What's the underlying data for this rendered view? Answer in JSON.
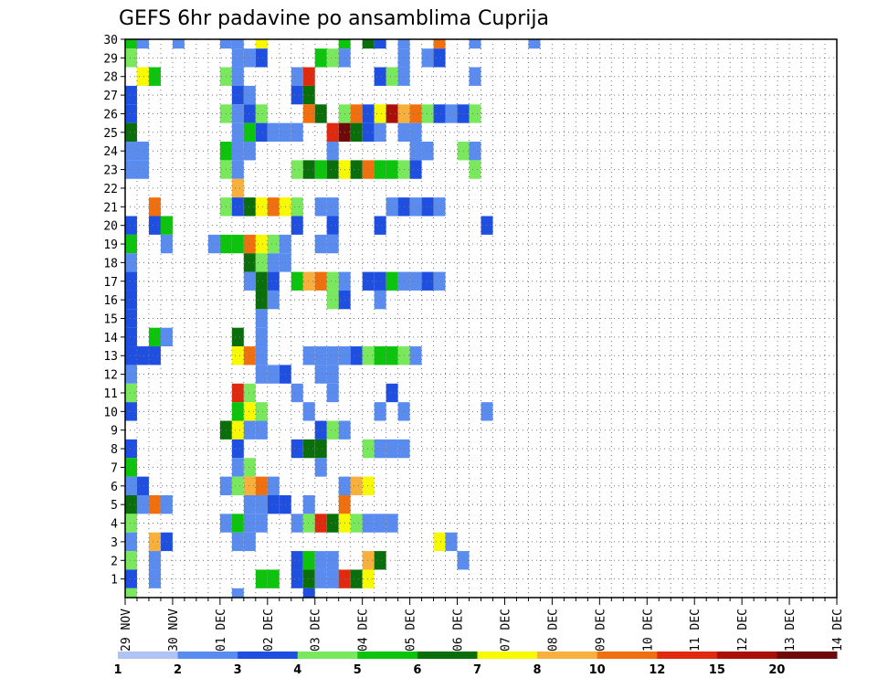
{
  "chart_data": {
    "type": "heatmap",
    "title": "GEFS 6hr padavine po ansamblima Cuprija",
    "xlabel": "",
    "ylabel": "",
    "x_tick_labels": [
      "29 NOV",
      "30 NOV",
      "01 DEC",
      "02 DEC",
      "03 DEC",
      "04 DEC",
      "05 DEC",
      "06 DEC",
      "07 DEC",
      "08 DEC",
      "09 DEC",
      "10 DEC",
      "11 DEC",
      "12 DEC",
      "13 DEC",
      "14 DEC"
    ],
    "y_tick_labels": [
      "1",
      "2",
      "3",
      "4",
      "5",
      "6",
      "7",
      "8",
      "9",
      "10",
      "11",
      "12",
      "13",
      "14",
      "15",
      "16",
      "17",
      "18",
      "19",
      "20",
      "21",
      "22",
      "23",
      "24",
      "25",
      "26",
      "27",
      "28",
      "29",
      "30"
    ],
    "xlim": [
      0,
      60
    ],
    "ylim": [
      0,
      30
    ],
    "grid": true,
    "colorbar": {
      "placement": "bottom",
      "levels": [
        "1",
        "2",
        "3",
        "4",
        "5",
        "6",
        "7",
        "8",
        "10",
        "12",
        "15",
        "20"
      ],
      "colors": [
        "#aec4f2",
        "#5a8cf0",
        "#1e4fe0",
        "#7ae85c",
        "#0cc40c",
        "#0a6e0a",
        "#f8f800",
        "#f8b03c",
        "#f07010",
        "#e02a10",
        "#a81008",
        "#6e0a0a"
      ]
    },
    "cells": [
      [
        0,
        30,
        4
      ],
      [
        1,
        30,
        1
      ],
      [
        4,
        30,
        1
      ],
      [
        8,
        30,
        1
      ],
      [
        9,
        30,
        1
      ],
      [
        11,
        30,
        6
      ],
      [
        18,
        30,
        4
      ],
      [
        20,
        30,
        5
      ],
      [
        21,
        30,
        2
      ],
      [
        23,
        30,
        1
      ],
      [
        26,
        30,
        8
      ],
      [
        29,
        30,
        1
      ],
      [
        34,
        30,
        1
      ],
      [
        0,
        29,
        3
      ],
      [
        9,
        29,
        1
      ],
      [
        10,
        29,
        1
      ],
      [
        11,
        29,
        2
      ],
      [
        16,
        29,
        4
      ],
      [
        17,
        29,
        3
      ],
      [
        18,
        29,
        1
      ],
      [
        23,
        29,
        1
      ],
      [
        25,
        29,
        1
      ],
      [
        26,
        29,
        2
      ],
      [
        1,
        28,
        6
      ],
      [
        2,
        28,
        4
      ],
      [
        8,
        28,
        3
      ],
      [
        9,
        28,
        1
      ],
      [
        14,
        28,
        1
      ],
      [
        15,
        28,
        9
      ],
      [
        21,
        28,
        2
      ],
      [
        22,
        28,
        3
      ],
      [
        23,
        28,
        1
      ],
      [
        29,
        28,
        1
      ],
      [
        0,
        27,
        2
      ],
      [
        9,
        27,
        2
      ],
      [
        10,
        27,
        1
      ],
      [
        14,
        27,
        2
      ],
      [
        15,
        27,
        5
      ],
      [
        0,
        26,
        2
      ],
      [
        8,
        26,
        3
      ],
      [
        9,
        26,
        1
      ],
      [
        10,
        26,
        2
      ],
      [
        11,
        26,
        3
      ],
      [
        15,
        26,
        8
      ],
      [
        16,
        26,
        5
      ],
      [
        18,
        26,
        3
      ],
      [
        19,
        26,
        8
      ],
      [
        20,
        26,
        2
      ],
      [
        21,
        26,
        6
      ],
      [
        22,
        26,
        10
      ],
      [
        23,
        26,
        7
      ],
      [
        24,
        26,
        8
      ],
      [
        25,
        26,
        3
      ],
      [
        26,
        26,
        2
      ],
      [
        27,
        26,
        1
      ],
      [
        28,
        26,
        2
      ],
      [
        29,
        26,
        3
      ],
      [
        0,
        25,
        5
      ],
      [
        9,
        25,
        1
      ],
      [
        10,
        25,
        4
      ],
      [
        11,
        25,
        2
      ],
      [
        12,
        25,
        1
      ],
      [
        13,
        25,
        1
      ],
      [
        14,
        25,
        1
      ],
      [
        17,
        25,
        9
      ],
      [
        18,
        25,
        11
      ],
      [
        19,
        25,
        5
      ],
      [
        20,
        25,
        2
      ],
      [
        21,
        25,
        1
      ],
      [
        23,
        25,
        1
      ],
      [
        24,
        25,
        1
      ],
      [
        0,
        24,
        1
      ],
      [
        1,
        24,
        1
      ],
      [
        8,
        24,
        4
      ],
      [
        9,
        24,
        1
      ],
      [
        10,
        24,
        1
      ],
      [
        17,
        24,
        1
      ],
      [
        24,
        24,
        1
      ],
      [
        25,
        24,
        1
      ],
      [
        28,
        24,
        3
      ],
      [
        29,
        24,
        1
      ],
      [
        0,
        23,
        1
      ],
      [
        1,
        23,
        1
      ],
      [
        8,
        23,
        3
      ],
      [
        9,
        23,
        1
      ],
      [
        14,
        23,
        3
      ],
      [
        15,
        23,
        5
      ],
      [
        16,
        23,
        4
      ],
      [
        17,
        23,
        5
      ],
      [
        18,
        23,
        6
      ],
      [
        19,
        23,
        5
      ],
      [
        20,
        23,
        8
      ],
      [
        21,
        23,
        4
      ],
      [
        22,
        23,
        4
      ],
      [
        23,
        23,
        3
      ],
      [
        24,
        23,
        2
      ],
      [
        29,
        23,
        3
      ],
      [
        9,
        22,
        7
      ],
      [
        2,
        21,
        8
      ],
      [
        8,
        21,
        3
      ],
      [
        9,
        21,
        2
      ],
      [
        10,
        21,
        5
      ],
      [
        11,
        21,
        6
      ],
      [
        12,
        21,
        8
      ],
      [
        13,
        21,
        6
      ],
      [
        14,
        21,
        3
      ],
      [
        16,
        21,
        1
      ],
      [
        17,
        21,
        1
      ],
      [
        22,
        21,
        1
      ],
      [
        23,
        21,
        2
      ],
      [
        24,
        21,
        1
      ],
      [
        25,
        21,
        2
      ],
      [
        26,
        21,
        1
      ],
      [
        0,
        20,
        2
      ],
      [
        2,
        20,
        2
      ],
      [
        3,
        20,
        4
      ],
      [
        14,
        20,
        2
      ],
      [
        17,
        20,
        2
      ],
      [
        21,
        20,
        2
      ],
      [
        30,
        20,
        2
      ],
      [
        0,
        19,
        4
      ],
      [
        3,
        19,
        1
      ],
      [
        7,
        19,
        1
      ],
      [
        8,
        19,
        4
      ],
      [
        9,
        19,
        4
      ],
      [
        10,
        19,
        8
      ],
      [
        11,
        19,
        6
      ],
      [
        12,
        19,
        3
      ],
      [
        13,
        19,
        1
      ],
      [
        16,
        19,
        1
      ],
      [
        17,
        19,
        1
      ],
      [
        0,
        18,
        1
      ],
      [
        10,
        18,
        5
      ],
      [
        11,
        18,
        3
      ],
      [
        12,
        18,
        1
      ],
      [
        13,
        18,
        1
      ],
      [
        0,
        17,
        2
      ],
      [
        10,
        17,
        1
      ],
      [
        11,
        17,
        5
      ],
      [
        12,
        17,
        2
      ],
      [
        14,
        17,
        4
      ],
      [
        15,
        17,
        7
      ],
      [
        16,
        17,
        8
      ],
      [
        17,
        17,
        3
      ],
      [
        18,
        17,
        1
      ],
      [
        20,
        17,
        2
      ],
      [
        21,
        17,
        2
      ],
      [
        22,
        17,
        4
      ],
      [
        23,
        17,
        1
      ],
      [
        24,
        17,
        1
      ],
      [
        25,
        17,
        2
      ],
      [
        26,
        17,
        1
      ],
      [
        0,
        16,
        2
      ],
      [
        11,
        16,
        5
      ],
      [
        12,
        16,
        1
      ],
      [
        17,
        16,
        3
      ],
      [
        18,
        16,
        2
      ],
      [
        21,
        16,
        1
      ],
      [
        0,
        15,
        2
      ],
      [
        11,
        15,
        1
      ],
      [
        0,
        14,
        2
      ],
      [
        2,
        14,
        4
      ],
      [
        3,
        14,
        1
      ],
      [
        9,
        14,
        5
      ],
      [
        11,
        14,
        1
      ],
      [
        0,
        13,
        2
      ],
      [
        1,
        13,
        2
      ],
      [
        2,
        13,
        2
      ],
      [
        9,
        13,
        6
      ],
      [
        10,
        13,
        8
      ],
      [
        11,
        13,
        1
      ],
      [
        15,
        13,
        1
      ],
      [
        16,
        13,
        1
      ],
      [
        17,
        13,
        1
      ],
      [
        18,
        13,
        1
      ],
      [
        19,
        13,
        2
      ],
      [
        20,
        13,
        3
      ],
      [
        21,
        13,
        4
      ],
      [
        22,
        13,
        4
      ],
      [
        23,
        13,
        3
      ],
      [
        24,
        13,
        1
      ],
      [
        0,
        12,
        1
      ],
      [
        11,
        12,
        1
      ],
      [
        12,
        12,
        1
      ],
      [
        13,
        12,
        2
      ],
      [
        16,
        12,
        1
      ],
      [
        17,
        12,
        1
      ],
      [
        0,
        11,
        3
      ],
      [
        9,
        11,
        9
      ],
      [
        10,
        11,
        3
      ],
      [
        14,
        11,
        1
      ],
      [
        17,
        11,
        1
      ],
      [
        22,
        11,
        2
      ],
      [
        0,
        10,
        2
      ],
      [
        9,
        10,
        4
      ],
      [
        10,
        10,
        6
      ],
      [
        11,
        10,
        3
      ],
      [
        15,
        10,
        1
      ],
      [
        21,
        10,
        1
      ],
      [
        23,
        10,
        1
      ],
      [
        30,
        10,
        1
      ],
      [
        8,
        9,
        5
      ],
      [
        9,
        9,
        6
      ],
      [
        10,
        9,
        1
      ],
      [
        11,
        9,
        1
      ],
      [
        16,
        9,
        2
      ],
      [
        17,
        9,
        3
      ],
      [
        18,
        9,
        1
      ],
      [
        0,
        8,
        2
      ],
      [
        9,
        8,
        2
      ],
      [
        14,
        8,
        2
      ],
      [
        15,
        8,
        5
      ],
      [
        16,
        8,
        5
      ],
      [
        20,
        8,
        3
      ],
      [
        21,
        8,
        1
      ],
      [
        22,
        8,
        1
      ],
      [
        23,
        8,
        1
      ],
      [
        0,
        7,
        4
      ],
      [
        9,
        7,
        1
      ],
      [
        10,
        7,
        3
      ],
      [
        16,
        7,
        1
      ],
      [
        0,
        6,
        1
      ],
      [
        1,
        6,
        2
      ],
      [
        8,
        6,
        1
      ],
      [
        9,
        6,
        3
      ],
      [
        10,
        6,
        7
      ],
      [
        11,
        6,
        8
      ],
      [
        12,
        6,
        1
      ],
      [
        18,
        6,
        1
      ],
      [
        19,
        6,
        7
      ],
      [
        20,
        6,
        6
      ],
      [
        0,
        5,
        5
      ],
      [
        1,
        5,
        1
      ],
      [
        2,
        5,
        8
      ],
      [
        3,
        5,
        1
      ],
      [
        10,
        5,
        1
      ],
      [
        11,
        5,
        1
      ],
      [
        12,
        5,
        2
      ],
      [
        13,
        5,
        2
      ],
      [
        15,
        5,
        1
      ],
      [
        18,
        5,
        8
      ],
      [
        0,
        4,
        3
      ],
      [
        8,
        4,
        1
      ],
      [
        9,
        4,
        4
      ],
      [
        10,
        4,
        1
      ],
      [
        11,
        4,
        1
      ],
      [
        14,
        4,
        1
      ],
      [
        15,
        4,
        3
      ],
      [
        16,
        4,
        9
      ],
      [
        17,
        4,
        5
      ],
      [
        18,
        4,
        6
      ],
      [
        19,
        4,
        3
      ],
      [
        20,
        4,
        1
      ],
      [
        21,
        4,
        1
      ],
      [
        22,
        4,
        1
      ],
      [
        0,
        3,
        1
      ],
      [
        2,
        3,
        7
      ],
      [
        3,
        3,
        2
      ],
      [
        9,
        3,
        1
      ],
      [
        10,
        3,
        1
      ],
      [
        26,
        3,
        6
      ],
      [
        27,
        3,
        1
      ],
      [
        0,
        2,
        3
      ],
      [
        2,
        2,
        1
      ],
      [
        14,
        2,
        2
      ],
      [
        15,
        2,
        4
      ],
      [
        16,
        2,
        1
      ],
      [
        17,
        2,
        1
      ],
      [
        20,
        2,
        7
      ],
      [
        21,
        2,
        5
      ],
      [
        28,
        2,
        1
      ],
      [
        0,
        1,
        2
      ],
      [
        2,
        1,
        1
      ],
      [
        11,
        1,
        4
      ],
      [
        12,
        1,
        4
      ],
      [
        14,
        1,
        2
      ],
      [
        15,
        1,
        5
      ],
      [
        16,
        1,
        1
      ],
      [
        17,
        1,
        1
      ],
      [
        18,
        1,
        9
      ],
      [
        19,
        1,
        5
      ],
      [
        20,
        1,
        6
      ],
      [
        0,
        0,
        3
      ],
      [
        9,
        0,
        1
      ],
      [
        15,
        0,
        2
      ]
    ]
  }
}
